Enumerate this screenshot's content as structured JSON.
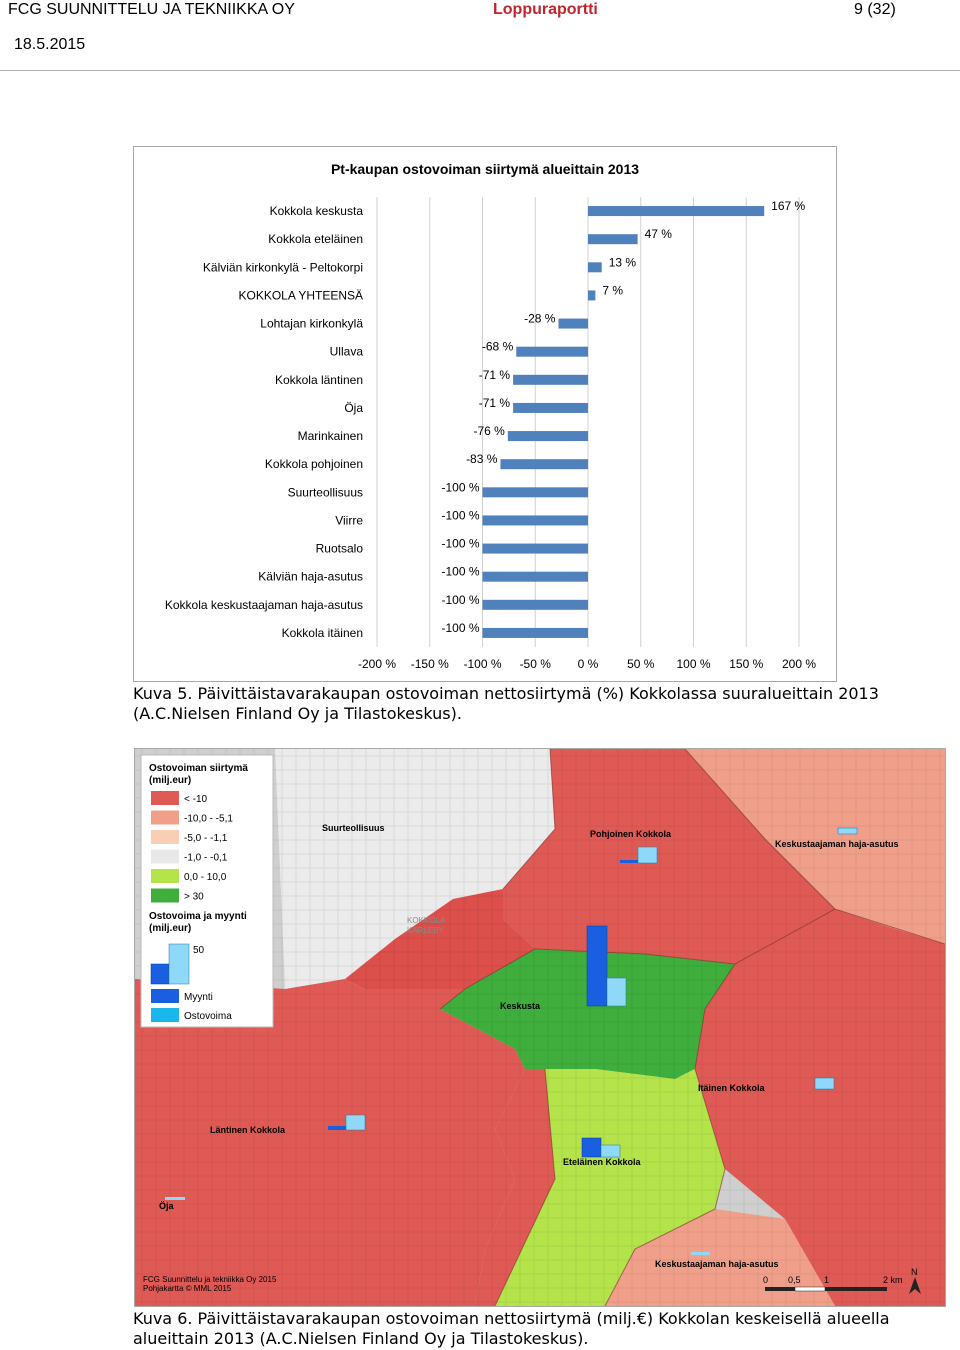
{
  "header": {
    "org": "FCG SUUNNITTELU JA TEKNIIKKA OY",
    "doc_title": "Loppuraportti",
    "page": "9 (32)",
    "date": "18.5.2015"
  },
  "chart_data": {
    "type": "bar",
    "orientation": "horizontal",
    "title": "Pt-kaupan ostovoiman siirtymä alueittain 2013",
    "categories": [
      "Kokkola keskusta",
      "Kokkola eteläinen",
      "Kälviän kirkonkylä - Peltokorpi",
      "KOKKOLA YHTEENSÄ",
      "Lohtajan kirkonkylä",
      "Ullava",
      "Kokkola läntinen",
      "Öja",
      "Marinkainen",
      "Kokkola pohjoinen",
      "Suurteollisuus",
      "Viirre",
      "Ruotsalo",
      "Kälviän haja-asutus",
      "Kokkola keskustaajaman haja-asutus",
      "Kokkola itäinen"
    ],
    "values": [
      167,
      47,
      13,
      7,
      -28,
      -68,
      -71,
      -71,
      -76,
      -83,
      -100,
      -100,
      -100,
      -100,
      -100,
      -100
    ],
    "data_labels": [
      "167 %",
      "47 %",
      "13 %",
      "7 %",
      "-28 %",
      "-68 %",
      "-71 %",
      "-71 %",
      "-76 %",
      "-83 %",
      "-100 %",
      "-100 %",
      "-100 %",
      "-100 %",
      "-100 %",
      "-100 %"
    ],
    "xlim": [
      -200,
      200
    ],
    "xticks": [
      -200,
      -150,
      -100,
      -50,
      0,
      50,
      100,
      150,
      200
    ],
    "xtick_labels": [
      "-200 %",
      "-150 %",
      "-100 %",
      "-50 %",
      "0 %",
      "50 %",
      "100 %",
      "150 %",
      "200 %"
    ],
    "grid": true,
    "bar_color": "#4f81bd"
  },
  "caption1": "Kuva 5. Päivittäistavarakaupan ostovoiman nettosiirtymä (%) Kokkolassa suuralueittain 2013 (A.C.Nielsen Finland Oy ja Tilastokeskus).",
  "map": {
    "legend": {
      "title1": "Ostovoiman siirtymä",
      "title1_unit": "(milj.eur)",
      "classes": [
        {
          "label": "< -10",
          "color": "#e05a55"
        },
        {
          "label": "-10,0 - -5,1",
          "color": "#f0a08a"
        },
        {
          "label": "-5,0 - -1,1",
          "color": "#f8cfb4"
        },
        {
          "label": "-1,0 - -0,1",
          "color": "#e8e8e8"
        },
        {
          "label": "0,0 - 10,0",
          "color": "#b5e34a"
        },
        {
          "label": "> 30",
          "color": "#3fae3c"
        }
      ],
      "title2": "Ostovoima ja myynti",
      "title2_unit": "(milj.eur)",
      "scale_value": "50",
      "series": [
        {
          "label": "Myynti",
          "color": "#1a5fe0"
        },
        {
          "label": "Ostovoima",
          "color": "#19b7ec"
        }
      ]
    },
    "labels": {
      "suurteollisuus": "Suurteollisuus",
      "pohjoinen": "Pohjoinen Kokkola",
      "keskustaajama_ne": "Keskustaajaman haja-asutus",
      "kokkola_karleby_1": "KOKKOLA",
      "kokkola_karleby_2": "KARLEBY",
      "keskusta": "Keskusta",
      "itainen": "Itäinen Kokkola",
      "lantinen": "Läntinen Kokkola",
      "etelainen": "Eteläinen Kokkola",
      "oja": "Öja",
      "keskustaajama_s": "Keskustaajaman haja-asutus"
    },
    "credit1": "FCG Suunnittelu ja tekniikka Oy 2015",
    "credit2": "Pohjakartta © MML 2015",
    "scalebar": [
      "0",
      "0,5",
      "1",
      "2 km"
    ],
    "north": "N"
  },
  "caption2": "Kuva 6. Päivittäistavarakaupan ostovoiman nettosiirtymä (milj.€) Kokkolan keskeisellä alueella alueittain 2013 (A.C.Nielsen Finland Oy ja Tilastokeskus)."
}
